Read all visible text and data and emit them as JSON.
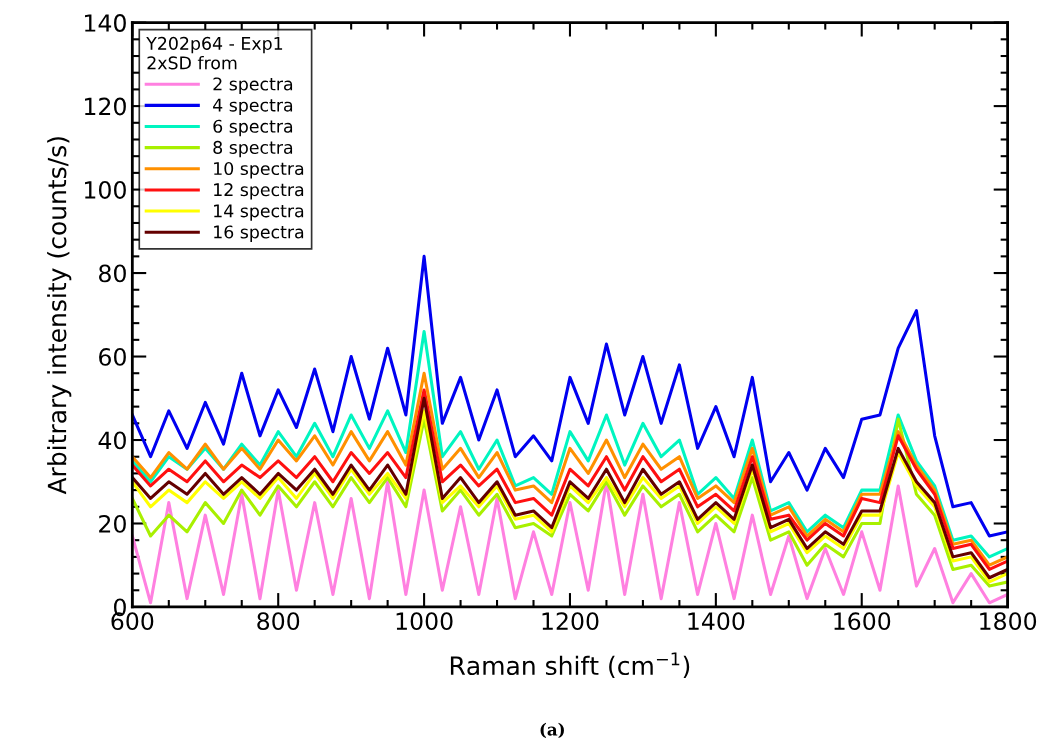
{
  "chart_data": {
    "type": "line",
    "xlabel": "Raman shift (cm$^{−1}$)",
    "ylabel": "Arbitrary intensity (counts/s)",
    "legend_title": "Y202p64 - Exp1\n2xSD from",
    "legend": "top left",
    "annotations": [
      "(a)"
    ],
    "xlim": [
      600,
      1800
    ],
    "ylim": [
      0,
      140
    ],
    "xticks": [
      600,
      800,
      1000,
      1200,
      1400,
      1600,
      1800
    ],
    "yticks": [
      0,
      20,
      40,
      60,
      80,
      100,
      120,
      140
    ],
    "grid": false,
    "marker": "none",
    "line_style": "solid",
    "x": [
      600,
      625,
      650,
      675,
      700,
      725,
      750,
      775,
      800,
      825,
      850,
      875,
      900,
      925,
      950,
      975,
      1000,
      1025,
      1050,
      1075,
      1100,
      1125,
      1150,
      1175,
      1200,
      1225,
      1250,
      1275,
      1300,
      1325,
      1350,
      1375,
      1400,
      1425,
      1450,
      1475,
      1500,
      1525,
      1550,
      1575,
      1600,
      1625,
      1650,
      1675,
      1700,
      1725,
      1750,
      1775,
      1800
    ],
    "series": [
      {
        "name": "2 spectra",
        "color": "#ff80e0",
        "values": [
          17,
          1,
          25,
          2,
          22,
          3,
          27,
          2,
          28,
          4,
          25,
          3,
          26,
          2,
          30,
          3,
          28,
          4,
          24,
          3,
          26,
          2,
          18,
          3,
          25,
          4,
          30,
          3,
          27,
          2,
          25,
          3,
          20,
          2,
          22,
          3,
          17,
          2,
          14,
          3,
          18,
          4,
          29,
          5,
          14,
          1,
          8,
          1,
          3
        ]
      },
      {
        "name": "4 spectra",
        "color": "#0000f0",
        "values": [
          46,
          36,
          47,
          38,
          49,
          39,
          56,
          41,
          52,
          43,
          57,
          42,
          60,
          45,
          62,
          46,
          84,
          44,
          55,
          40,
          52,
          36,
          41,
          35,
          55,
          44,
          63,
          46,
          60,
          44,
          58,
          38,
          48,
          36,
          55,
          30,
          37,
          28,
          38,
          31,
          45,
          46,
          62,
          71,
          41,
          24,
          25,
          17,
          18
        ]
      },
      {
        "name": "6 spectra",
        "color": "#00f5c0",
        "values": [
          35,
          30,
          36,
          33,
          38,
          33,
          39,
          34,
          42,
          36,
          44,
          36,
          46,
          38,
          47,
          37,
          66,
          36,
          42,
          33,
          40,
          29,
          31,
          27,
          42,
          35,
          46,
          34,
          44,
          36,
          40,
          27,
          31,
          26,
          40,
          23,
          25,
          18,
          22,
          19,
          28,
          28,
          46,
          35,
          29,
          16,
          17,
          12,
          14
        ]
      },
      {
        "name": "8 spectra",
        "color": "#a8f000",
        "values": [
          26,
          17,
          22,
          18,
          25,
          20,
          28,
          22,
          29,
          24,
          30,
          24,
          31,
          25,
          31,
          24,
          45,
          23,
          28,
          22,
          27,
          19,
          20,
          17,
          27,
          23,
          30,
          22,
          29,
          24,
          27,
          18,
          22,
          18,
          31,
          16,
          18,
          10,
          15,
          12,
          20,
          20,
          45,
          27,
          22,
          9,
          10,
          5,
          6
        ]
      },
      {
        "name": "10 spectra",
        "color": "#ff9000",
        "values": [
          36,
          31,
          37,
          33,
          39,
          33,
          38,
          33,
          40,
          35,
          41,
          34,
          42,
          35,
          42,
          34,
          56,
          33,
          38,
          31,
          37,
          28,
          29,
          25,
          38,
          32,
          40,
          31,
          39,
          33,
          36,
          26,
          29,
          25,
          38,
          22,
          24,
          17,
          21,
          18,
          27,
          27,
          42,
          34,
          28,
          15,
          16,
          10,
          12
        ]
      },
      {
        "name": "12 spectra",
        "color": "#ff1010",
        "values": [
          34,
          29,
          33,
          30,
          35,
          30,
          34,
          31,
          35,
          31,
          36,
          30,
          37,
          32,
          37,
          31,
          52,
          30,
          34,
          29,
          33,
          25,
          26,
          22,
          33,
          29,
          36,
          28,
          36,
          30,
          33,
          24,
          27,
          23,
          36,
          21,
          22,
          16,
          20,
          17,
          26,
          25,
          41,
          33,
          27,
          14,
          15,
          9,
          11
        ]
      },
      {
        "name": "14 spectra",
        "color": "#ffff00",
        "values": [
          30,
          24,
          28,
          25,
          30,
          26,
          30,
          26,
          31,
          26,
          32,
          26,
          33,
          27,
          32,
          26,
          47,
          25,
          29,
          24,
          29,
          21,
          22,
          18,
          29,
          25,
          31,
          24,
          31,
          26,
          29,
          20,
          24,
          20,
          33,
          18,
          20,
          13,
          17,
          14,
          22,
          22,
          37,
          29,
          24,
          11,
          12,
          6,
          8
        ]
      },
      {
        "name": "16 spectra",
        "color": "#640000",
        "values": [
          31,
          26,
          30,
          27,
          32,
          27,
          31,
          27,
          32,
          28,
          33,
          27,
          34,
          28,
          34,
          27,
          50,
          26,
          31,
          25,
          30,
          22,
          23,
          19,
          30,
          26,
          33,
          25,
          33,
          27,
          30,
          21,
          25,
          21,
          34,
          19,
          21,
          14,
          18,
          15,
          23,
          23,
          38,
          30,
          25,
          12,
          13,
          7,
          9
        ]
      }
    ]
  }
}
